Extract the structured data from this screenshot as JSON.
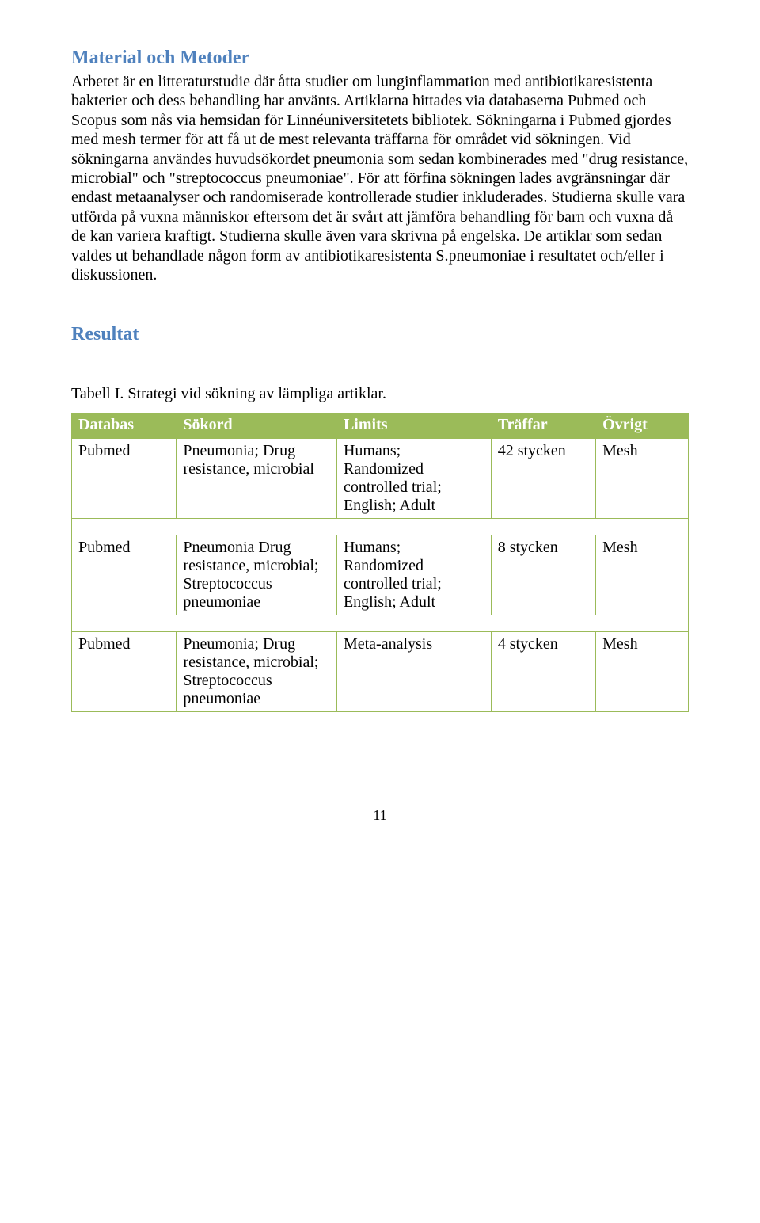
{
  "section1": {
    "title": "Material och Metoder",
    "body": "Arbetet är en litteraturstudie där åtta studier om lunginflammation med antibiotikaresistenta bakterier och dess behandling har använts. Artiklarna hittades via databaserna Pubmed och Scopus som nås via hemsidan för Linnéuniversitetets bibliotek. Sökningarna i Pubmed gjordes med mesh termer för att få ut de mest relevanta träffarna för området vid sökningen. Vid sökningarna användes huvudsökordet pneumonia som sedan kombinerades med \"drug resistance, microbial\" och \"streptococcus pneumoniae\". För att förfina sökningen lades avgränsningar där endast metaanalyser och randomiserade kontrollerade studier inkluderades. Studierna skulle vara utförda på vuxna människor eftersom det är svårt att jämföra behandling för barn och vuxna då de kan variera kraftigt. Studierna skulle även vara skrivna på engelska. De artiklar som sedan valdes ut behandlade någon form av antibiotikaresistenta S.pneumoniae i resultatet och/eller i diskussionen."
  },
  "section2": {
    "title": "Resultat",
    "tableCaption": "Tabell I. Strategi vid sökning av lämpliga artiklar."
  },
  "table": {
    "headers": [
      "Databas",
      "Sökord",
      "Limits",
      "Träffar",
      "Övrigt"
    ],
    "rows": [
      {
        "c1": "Pubmed",
        "c2": "Pneumonia; Drug resistance, microbial",
        "c3": "Humans; Randomized controlled trial; English; Adult",
        "c4": "42 stycken",
        "c5": "Mesh"
      },
      {
        "c1": "Pubmed",
        "c2": "Pneumonia Drug resistance, microbial; Streptococcus pneumoniae",
        "c3": "Humans; Randomized controlled trial; English; Adult",
        "c4": "8 stycken",
        "c5": "Mesh"
      },
      {
        "c1": "Pubmed",
        "c2": "Pneumonia; Drug resistance, microbial; Streptococcus pneumoniae",
        "c3": "Meta-analysis",
        "c4": "4 stycken",
        "c5": "Mesh"
      }
    ]
  },
  "pageNumber": "11",
  "colors": {
    "headingColor": "#4f81bd",
    "tableHeaderBg": "#9bbb59",
    "tableHeaderFg": "#ffffff",
    "tableBorder": "#9bbb59",
    "bodyText": "#000000",
    "pageBg": "#ffffff"
  },
  "typography": {
    "headingFontSize": 24,
    "bodyFontSize": 20,
    "tableFontSize": 20,
    "fontFamily": "Times New Roman"
  }
}
